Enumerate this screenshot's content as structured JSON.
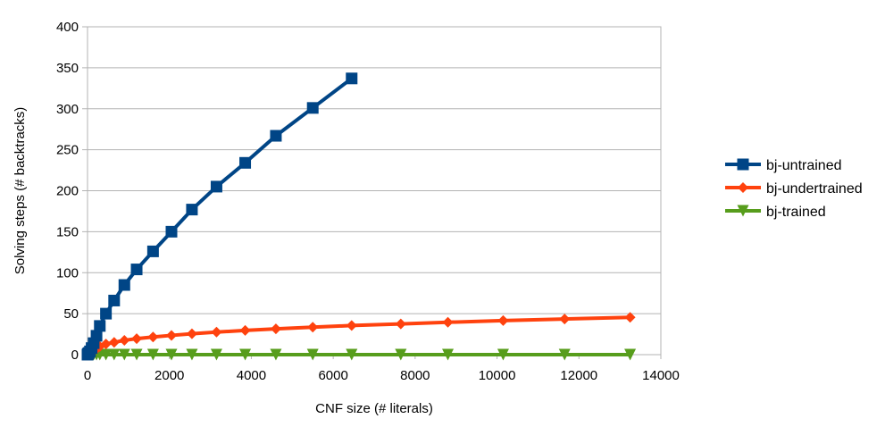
{
  "chart_data": {
    "type": "line",
    "title": "",
    "xlabel": "CNF size (# literals)",
    "ylabel": "Solving steps (# backtracks)",
    "xlim": [
      0,
      14000
    ],
    "ylim": [
      0,
      400
    ],
    "x_ticks": [
      "0",
      "2000",
      "4000",
      "6000",
      "8000",
      "10000",
      "12000",
      "14000"
    ],
    "y_ticks": [
      "0",
      "50",
      "100",
      "150",
      "200",
      "250",
      "300",
      "350",
      "400"
    ],
    "grid": "horizontal",
    "legend_position": "right",
    "series": [
      {
        "name": "bj-untrained",
        "color": "#004586",
        "marker": "square",
        "x": [
          0,
          10,
          30,
          60,
          100,
          150,
          220,
          300,
          450,
          650,
          900,
          1200,
          1600,
          2050,
          2550,
          3150,
          3850,
          4600,
          5500,
          6450
        ],
        "y": [
          0,
          1,
          2,
          4,
          8,
          14,
          23,
          35,
          50,
          66,
          85,
          104,
          126,
          150,
          177,
          205,
          234,
          267,
          301,
          337
        ]
      },
      {
        "name": "bj-undertrained",
        "color": "#ff420e",
        "marker": "diamond",
        "x": [
          0,
          10,
          30,
          60,
          100,
          150,
          220,
          300,
          450,
          650,
          900,
          1200,
          1600,
          2050,
          2550,
          3150,
          3850,
          4600,
          5500,
          6450,
          7650,
          8800,
          10150,
          11650,
          13250
        ],
        "y": [
          0,
          0.5,
          1,
          2,
          3.5,
          5,
          7,
          10,
          13,
          15,
          17.5,
          19.5,
          21.5,
          23.5,
          25.5,
          27.5,
          29.5,
          31.5,
          33.5,
          35.5,
          37.5,
          39.5,
          41.5,
          43.5,
          45.5
        ]
      },
      {
        "name": "bj-trained",
        "color": "#579d1c",
        "marker": "triangle-down",
        "x": [
          0,
          10,
          30,
          60,
          100,
          150,
          220,
          300,
          450,
          650,
          900,
          1200,
          1600,
          2050,
          2550,
          3150,
          3850,
          4600,
          5500,
          6450,
          7650,
          8800,
          10150,
          11650,
          13250
        ],
        "y": [
          0,
          0,
          0,
          0,
          0,
          0,
          0,
          0,
          0,
          0,
          0,
          0,
          0,
          0,
          0,
          0,
          0,
          0,
          0,
          0,
          0,
          0,
          0,
          0,
          0
        ]
      }
    ]
  }
}
